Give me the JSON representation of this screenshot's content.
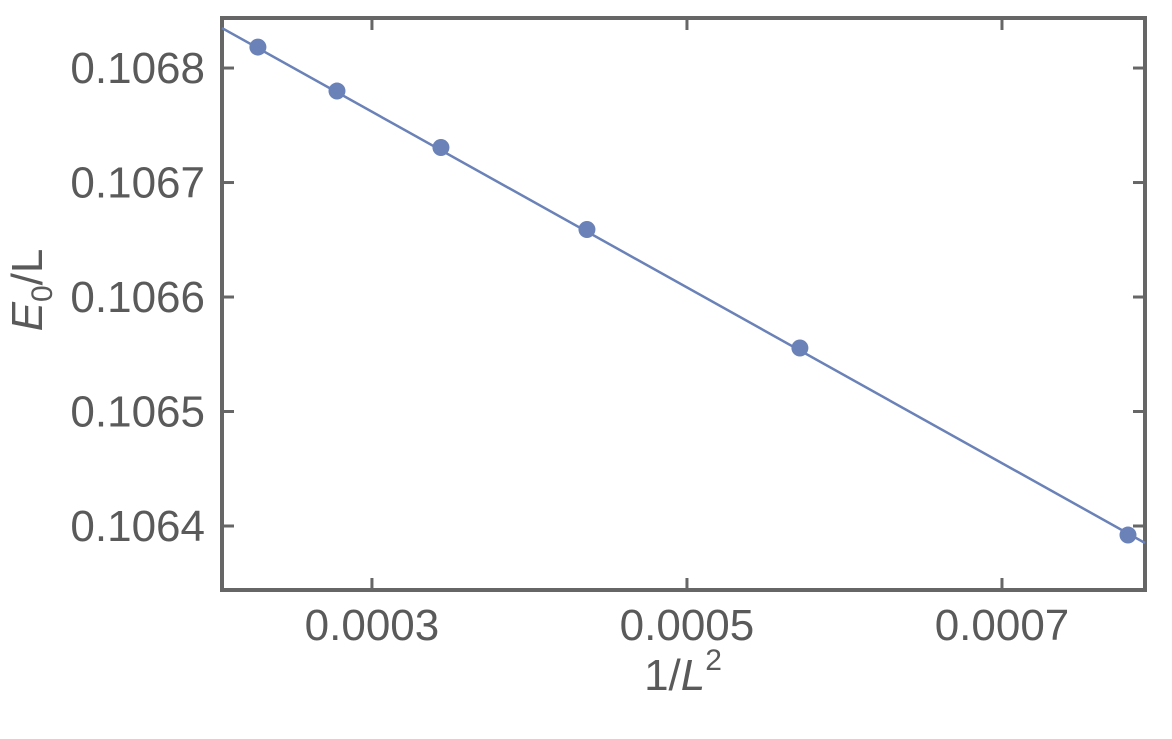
{
  "chart_data": {
    "type": "scatter",
    "xlabel": [
      "1/",
      "L",
      "2"
    ],
    "ylabel": [
      "E",
      "0",
      "/L"
    ],
    "xlim": [
      0.0002048,
      0.0007908
    ],
    "ylim": [
      0.1063441,
      0.1068437
    ],
    "xticks": [
      0.0003,
      0.0005,
      0.0007
    ],
    "yticks": [
      0.1064,
      0.1065,
      0.1066,
      0.1067,
      0.1068
    ],
    "series": [
      {
        "mode": "markers",
        "color": "#6a82b8",
        "x": [
          0.0002276,
          0.0002778,
          0.0003438,
          0.0004365,
          0.0005717,
          0.00078
        ],
        "values": [
          0.1068183,
          0.1067799,
          0.1067306,
          0.106659,
          0.1065555,
          0.1063921
        ]
      },
      {
        "mode": "line",
        "color": "#6a82b8",
        "x": [
          0.0002048,
          0.0007908
        ],
        "values": [
          0.1068349,
          0.1063852
        ]
      }
    ]
  }
}
